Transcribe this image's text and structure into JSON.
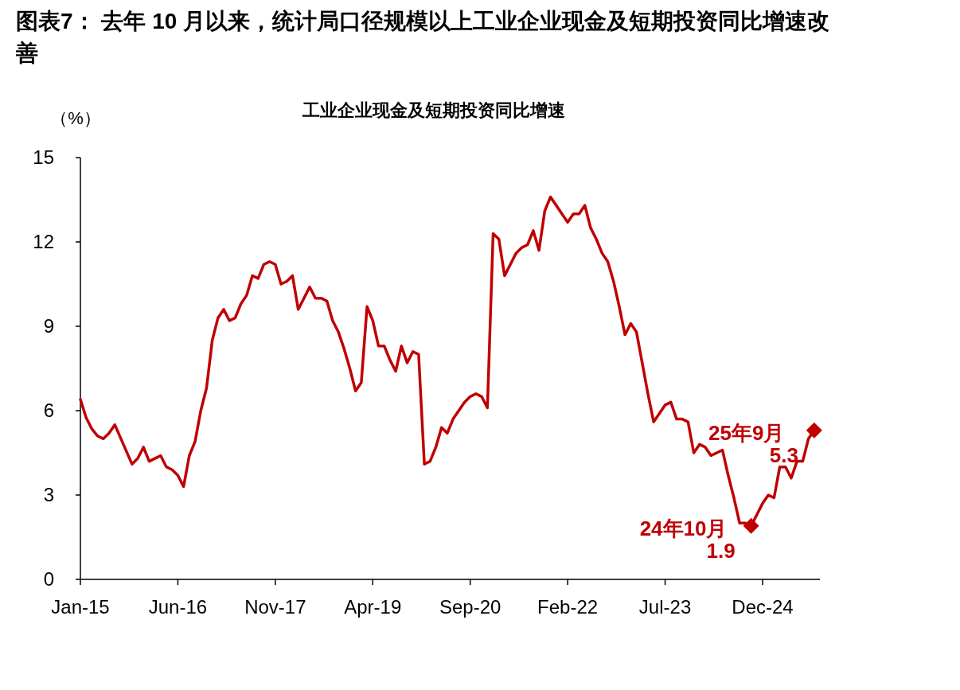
{
  "chart_data": {
    "type": "line",
    "title": "图表7：  去年 10 月以来，统计局口径规模以上工业企业现金及短期投资同比增速改善",
    "subtitle": "工业企业现金及短期投资同比增速",
    "ylabel": "（%）",
    "xlim": [
      "2015-01",
      "2025-10"
    ],
    "xticks": [
      {
        "value": "2015-01",
        "label": "Jan-15"
      },
      {
        "value": "2016-06",
        "label": "Jun-16"
      },
      {
        "value": "2017-11",
        "label": "Nov-17"
      },
      {
        "value": "2019-04",
        "label": "Apr-19"
      },
      {
        "value": "2020-09",
        "label": "Sep-20"
      },
      {
        "value": "2022-02",
        "label": "Feb-22"
      },
      {
        "value": "2023-07",
        "label": "Jul-23"
      },
      {
        "value": "2024-12",
        "label": "Dec-24"
      }
    ],
    "ylim": [
      0,
      15
    ],
    "yticks": [
      0,
      3,
      6,
      9,
      12,
      15
    ],
    "line_style": "solid",
    "series": [
      {
        "color": "#c00000",
        "x": [
          "2015-01",
          "2015-02",
          "2015-03",
          "2015-04",
          "2015-05",
          "2015-06",
          "2015-07",
          "2015-10",
          "2015-11",
          "2015-12",
          "2016-01",
          "2016-02",
          "2016-03",
          "2016-04",
          "2016-05",
          "2016-06",
          "2016-07",
          "2016-08",
          "2016-09",
          "2016-10",
          "2016-11",
          "2016-12",
          "2017-01",
          "2017-02",
          "2017-03",
          "2017-04",
          "2017-05",
          "2017-06",
          "2017-07",
          "2017-08",
          "2017-09",
          "2017-10",
          "2017-11",
          "2017-12",
          "2018-01",
          "2018-02",
          "2018-03",
          "2018-04",
          "2018-05",
          "2018-06",
          "2018-07",
          "2018-08",
          "2018-09",
          "2018-10",
          "2018-11",
          "2018-12",
          "2019-01",
          "2019-02",
          "2019-03",
          "2019-04",
          "2019-05",
          "2019-06",
          "2019-07",
          "2019-08",
          "2019-09",
          "2019-10",
          "2019-11",
          "2019-12",
          "2020-01",
          "2020-02",
          "2020-03",
          "2020-04",
          "2020-05",
          "2020-06",
          "2020-07",
          "2020-08",
          "2020-09",
          "2020-10",
          "2020-11",
          "2020-12",
          "2021-01",
          "2021-02",
          "2021-03",
          "2021-04",
          "2021-05",
          "2021-06",
          "2021-07",
          "2021-08",
          "2021-09",
          "2021-10",
          "2021-11",
          "2021-12",
          "2022-01",
          "2022-02",
          "2022-03",
          "2022-04",
          "2022-05",
          "2022-06",
          "2022-07",
          "2022-08",
          "2022-09",
          "2022-10",
          "2022-11",
          "2022-12",
          "2023-01",
          "2023-02",
          "2023-03",
          "2023-04",
          "2023-05",
          "2023-06",
          "2023-07",
          "2023-08",
          "2023-09",
          "2023-10",
          "2023-11",
          "2023-12",
          "2024-01",
          "2024-02",
          "2024-03",
          "2024-04",
          "2024-05",
          "2024-06",
          "2024-07",
          "2024-08",
          "2024-09",
          "2024-10",
          "2024-11",
          "2024-12",
          "2025-01",
          "2025-02",
          "2025-03",
          "2025-04",
          "2025-05",
          "2025-06",
          "2025-07",
          "2025-08",
          "2025-09"
        ],
        "values": [
          6.4,
          5.75,
          5.35,
          5.1,
          5.0,
          5.2,
          5.5,
          4.1,
          4.3,
          4.7,
          4.2,
          4.3,
          4.4,
          4.0,
          3.9,
          3.7,
          3.3,
          4.4,
          4.9,
          6.0,
          6.8,
          8.5,
          9.3,
          9.6,
          9.2,
          9.3,
          9.8,
          10.1,
          10.8,
          10.7,
          11.2,
          11.3,
          11.2,
          10.5,
          10.6,
          10.8,
          9.6,
          10.0,
          10.4,
          10.0,
          10.0,
          9.9,
          9.2,
          8.8,
          8.2,
          7.5,
          6.7,
          7.0,
          9.7,
          9.2,
          8.3,
          8.3,
          7.8,
          7.4,
          8.3,
          7.7,
          8.1,
          8.0,
          4.1,
          4.2,
          4.7,
          5.4,
          5.2,
          5.7,
          6.0,
          6.3,
          6.5,
          6.6,
          6.5,
          6.1,
          12.3,
          12.1,
          10.8,
          11.2,
          11.6,
          11.8,
          11.9,
          12.4,
          11.7,
          13.1,
          13.6,
          13.3,
          13.0,
          12.7,
          13.0,
          13.0,
          13.3,
          12.5,
          12.1,
          11.6,
          11.3,
          10.6,
          9.7,
          8.7,
          9.1,
          8.8,
          7.7,
          6.6,
          5.6,
          5.9,
          6.2,
          6.3,
          5.7,
          5.7,
          5.6,
          4.5,
          4.8,
          4.7,
          4.4,
          4.5,
          4.6,
          3.7,
          2.9,
          2.0,
          2.0,
          1.9,
          2.3,
          2.7,
          3.0,
          2.9,
          4.0,
          4.0,
          3.6,
          4.2,
          4.2,
          5.0,
          5.3
        ]
      },
      {
        "type": "scatter",
        "color": "#c00000",
        "marker": "diamond",
        "x": [
          "2024-10",
          "2025-09"
        ],
        "values": [
          1.9,
          5.3
        ],
        "value_labels": [
          "1.9",
          "5.3"
        ]
      }
    ],
    "annotations": [
      {
        "text": "24年10月",
        "x": "2024-10",
        "y": 1.9
      },
      {
        "text": "25年9月",
        "x": "2025-09",
        "y": 5.3
      }
    ]
  }
}
